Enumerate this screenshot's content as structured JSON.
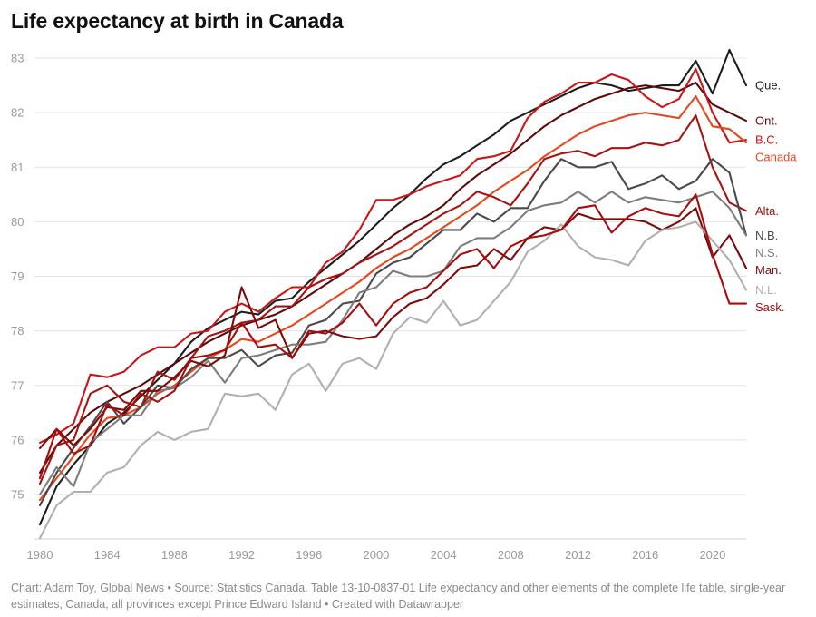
{
  "page": {
    "title": "Life expectancy at birth in Canada",
    "footer": "Chart: Adam Toy, Global News • Source: Statistics Canada. Table 13-10-0837-01 Life expectancy and other elements of the complete life table, single-year estimates, Canada, all provinces except Prince Edward Island • Created with Datawrapper"
  },
  "chart_data": {
    "type": "line",
    "title": "Life expectancy at birth in Canada",
    "xlabel": "",
    "ylabel": "",
    "x": [
      1980,
      1981,
      1982,
      1983,
      1984,
      1985,
      1986,
      1987,
      1988,
      1989,
      1990,
      1991,
      1992,
      1993,
      1994,
      1995,
      1996,
      1997,
      1998,
      1999,
      2000,
      2001,
      2002,
      2003,
      2004,
      2005,
      2006,
      2007,
      2008,
      2009,
      2010,
      2011,
      2012,
      2013,
      2014,
      2015,
      2016,
      2017,
      2018,
      2019,
      2020,
      2021,
      2022
    ],
    "xlim": [
      1980,
      2022
    ],
    "ylim": [
      74.2,
      83.2
    ],
    "x_ticks": [
      1980,
      1984,
      1988,
      1992,
      1996,
      2000,
      2004,
      2008,
      2012,
      2016,
      2020
    ],
    "y_ticks": [
      75,
      76,
      77,
      78,
      79,
      80,
      81,
      82,
      83
    ],
    "grid": true,
    "series": [
      {
        "name": "Que.",
        "color": "#1e1e1e",
        "values": [
          74.45,
          75.15,
          75.55,
          75.9,
          76.3,
          76.5,
          76.8,
          77.1,
          77.4,
          77.8,
          78.05,
          78.2,
          78.35,
          78.3,
          78.55,
          78.6,
          78.9,
          79.15,
          79.4,
          79.65,
          79.95,
          80.25,
          80.5,
          80.8,
          81.05,
          81.2,
          81.4,
          81.6,
          81.85,
          82.0,
          82.15,
          82.3,
          82.45,
          82.55,
          82.5,
          82.4,
          82.45,
          82.5,
          82.5,
          82.95,
          82.35,
          83.15,
          82.5
        ]
      },
      {
        "name": "Ont.",
        "color": "#5c0a0a",
        "values": [
          75.4,
          75.9,
          76.2,
          76.5,
          76.7,
          76.85,
          77.0,
          77.2,
          77.4,
          77.6,
          77.8,
          77.95,
          78.1,
          78.2,
          78.3,
          78.45,
          78.65,
          78.85,
          79.05,
          79.25,
          79.5,
          79.75,
          79.95,
          80.1,
          80.3,
          80.6,
          80.85,
          81.05,
          81.25,
          81.5,
          81.75,
          81.95,
          82.1,
          82.25,
          82.35,
          82.45,
          82.5,
          82.45,
          82.4,
          82.55,
          82.15,
          82.0,
          81.85
        ]
      },
      {
        "name": "B.C.",
        "color": "#c8161b",
        "values": [
          75.95,
          76.1,
          76.3,
          77.2,
          77.15,
          77.25,
          77.55,
          77.7,
          77.7,
          77.95,
          78.0,
          78.35,
          78.5,
          78.35,
          78.6,
          78.8,
          78.8,
          79.25,
          79.45,
          79.85,
          80.4,
          80.4,
          80.5,
          80.65,
          80.75,
          80.85,
          81.15,
          81.2,
          81.3,
          81.9,
          82.2,
          82.35,
          82.55,
          82.55,
          82.7,
          82.6,
          82.3,
          82.1,
          82.25,
          82.8,
          82.0,
          81.45,
          81.5
        ]
      },
      {
        "name": "Canada",
        "color": "#e8461c",
        "values": [
          74.9,
          75.3,
          75.7,
          76.1,
          76.4,
          76.45,
          76.6,
          76.85,
          77.0,
          77.25,
          77.5,
          77.65,
          77.85,
          77.8,
          77.95,
          78.1,
          78.3,
          78.5,
          78.7,
          78.9,
          79.15,
          79.35,
          79.5,
          79.7,
          79.9,
          80.1,
          80.3,
          80.55,
          80.75,
          80.95,
          81.2,
          81.4,
          81.6,
          81.75,
          81.85,
          81.95,
          82.0,
          81.95,
          81.9,
          82.3,
          81.75,
          81.7,
          81.45
        ]
      },
      {
        "name": "Alta.",
        "color": "#a61313",
        "values": [
          75.2,
          75.9,
          76.0,
          76.85,
          77.0,
          76.7,
          76.6,
          77.25,
          77.1,
          77.5,
          77.9,
          78.0,
          78.15,
          78.2,
          78.45,
          78.45,
          78.8,
          78.95,
          79.05,
          79.25,
          79.4,
          79.55,
          79.75,
          79.95,
          80.15,
          80.3,
          80.55,
          80.45,
          80.3,
          80.7,
          81.15,
          81.25,
          81.3,
          81.2,
          81.35,
          81.35,
          81.45,
          81.4,
          81.5,
          81.95,
          81.0,
          80.35,
          80.2
        ]
      },
      {
        "name": "N.B.",
        "color": "#4a4a4a",
        "values": [
          74.8,
          75.4,
          75.85,
          76.25,
          76.7,
          76.3,
          76.6,
          77.0,
          76.95,
          77.3,
          77.5,
          77.5,
          77.65,
          77.35,
          77.55,
          77.6,
          78.1,
          78.2,
          78.5,
          78.55,
          79.05,
          79.25,
          79.35,
          79.6,
          79.85,
          79.85,
          80.15,
          80.0,
          80.25,
          80.25,
          80.75,
          81.15,
          81.0,
          81.0,
          81.1,
          80.6,
          80.7,
          80.85,
          80.6,
          80.75,
          81.15,
          80.9,
          79.75
        ]
      },
      {
        "name": "N.S.",
        "color": "#7d7d7d",
        "values": [
          75.0,
          75.5,
          75.15,
          75.95,
          76.2,
          76.45,
          76.45,
          76.9,
          76.95,
          77.15,
          77.45,
          77.05,
          77.5,
          77.55,
          77.65,
          77.75,
          77.75,
          77.8,
          78.2,
          78.7,
          78.8,
          79.1,
          79.0,
          79.0,
          79.1,
          79.55,
          79.7,
          79.7,
          79.9,
          80.2,
          80.3,
          80.35,
          80.55,
          80.35,
          80.55,
          80.35,
          80.45,
          80.4,
          80.35,
          80.45,
          80.55,
          80.25,
          79.75
        ]
      },
      {
        "name": "Man.",
        "color": "#7a0c0c",
        "values": [
          75.85,
          76.2,
          75.9,
          76.2,
          76.6,
          76.55,
          76.9,
          76.9,
          77.15,
          77.45,
          77.35,
          77.55,
          78.8,
          78.05,
          78.2,
          77.5,
          77.95,
          78.0,
          77.9,
          77.85,
          77.9,
          78.25,
          78.5,
          78.6,
          78.85,
          79.15,
          79.2,
          79.5,
          79.3,
          79.7,
          79.9,
          79.85,
          80.15,
          80.05,
          80.05,
          80.05,
          80.0,
          79.85,
          80.0,
          80.25,
          79.35,
          79.75,
          79.15
        ]
      },
      {
        "name": "N.L.",
        "color": "#b0b0b0",
        "values": [
          74.2,
          74.8,
          75.05,
          75.05,
          75.4,
          75.5,
          75.9,
          76.15,
          76.0,
          76.15,
          76.2,
          76.85,
          76.8,
          76.85,
          76.55,
          77.2,
          77.4,
          76.9,
          77.4,
          77.5,
          77.3,
          77.95,
          78.25,
          78.15,
          78.55,
          78.1,
          78.2,
          78.55,
          78.9,
          79.45,
          79.65,
          79.95,
          79.55,
          79.35,
          79.3,
          79.2,
          79.65,
          79.85,
          79.9,
          80.0,
          79.65,
          79.3,
          78.75
        ]
      },
      {
        "name": "Sask.",
        "color": "#a80d0d",
        "values": [
          75.3,
          76.2,
          75.75,
          75.9,
          76.65,
          76.45,
          76.85,
          76.7,
          76.9,
          77.5,
          77.55,
          77.65,
          78.15,
          77.7,
          77.75,
          77.5,
          78.0,
          77.95,
          78.15,
          78.5,
          78.1,
          78.5,
          78.7,
          78.8,
          79.1,
          79.4,
          79.5,
          79.15,
          79.55,
          79.7,
          79.75,
          79.85,
          80.25,
          80.3,
          79.8,
          80.1,
          80.25,
          80.15,
          80.1,
          80.5,
          79.4,
          78.5,
          78.5
        ]
      }
    ]
  }
}
